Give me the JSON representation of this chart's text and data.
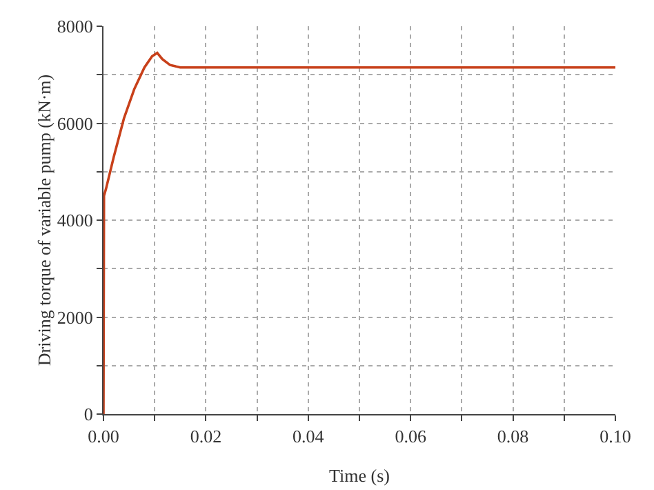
{
  "chart_data": {
    "type": "line",
    "xlabel": "Time (s)",
    "ylabel": "Driving torque of variable pump (kN·m)",
    "x": [
      0,
      0.0001,
      0.0005,
      0.002,
      0.004,
      0.006,
      0.008,
      0.0095,
      0.0105,
      0.0115,
      0.013,
      0.015,
      0.02,
      0.05,
      0.1
    ],
    "series": [
      {
        "color": "#c8401a",
        "values": [
          0,
          4500,
          4650,
          5300,
          6100,
          6700,
          7150,
          7380,
          7450,
          7320,
          7200,
          7150,
          7150,
          7150,
          7150
        ]
      }
    ],
    "xlim": [
      0,
      0.1
    ],
    "xticks": [
      {
        "value": 0,
        "label": "0.00"
      },
      {
        "value": 0.01,
        "label": null
      },
      {
        "value": 0.02,
        "label": "0.02"
      },
      {
        "value": 0.03,
        "label": null
      },
      {
        "value": 0.04,
        "label": "0.04"
      },
      {
        "value": 0.05,
        "label": null
      },
      {
        "value": 0.06,
        "label": "0.06"
      },
      {
        "value": 0.07,
        "label": null
      },
      {
        "value": 0.08,
        "label": "0.08"
      },
      {
        "value": 0.09,
        "label": null
      },
      {
        "value": 0.1,
        "label": "0.10"
      }
    ],
    "ylim": [
      0,
      8000
    ],
    "yticks": [
      0,
      {
        "value": 1000,
        "label": null
      },
      2000,
      {
        "value": 3000,
        "label": null
      },
      4000,
      {
        "value": 5000,
        "label": null
      },
      6000,
      {
        "value": 7000,
        "label": null
      },
      8000
    ],
    "grid": true,
    "legend": false,
    "marker": "none",
    "line_style": "solid"
  }
}
